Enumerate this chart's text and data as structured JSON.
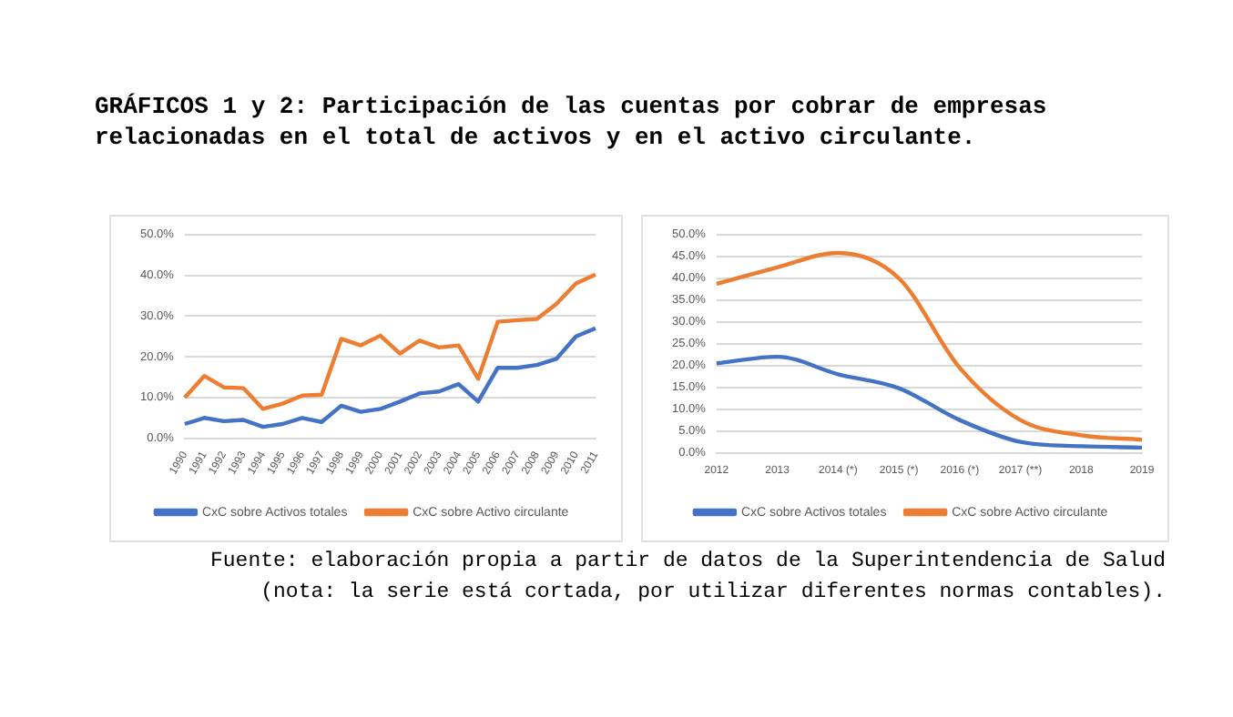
{
  "chart_data": [
    {
      "type": "line",
      "title": "GRÁFICOS 1 y 2: Participación de las cuentas por cobrar de empresas relacionadas en el total de activos y en el activo circulante.",
      "categories": [
        "1990",
        "1991",
        "1992",
        "1993",
        "1994",
        "1995",
        "1996",
        "1997",
        "1998",
        "1999",
        "2000",
        "2001",
        "2002",
        "2003",
        "2004",
        "2005",
        "2006",
        "2007",
        "2008",
        "2009",
        "2010",
        "2011"
      ],
      "series": [
        {
          "name": "CxC sobre Activos totales",
          "color": "#4472c4",
          "values": [
            3.5,
            5,
            4.2,
            4.5,
            2.8,
            3.5,
            5,
            4,
            8,
            6.5,
            7.2,
            9,
            11,
            11.5,
            13.3,
            9,
            17.3,
            17.3,
            18,
            19.5,
            25,
            27
          ]
        },
        {
          "name": "CxC sobre Activo circulante",
          "color": "#ed7d31",
          "values": [
            10,
            15.3,
            12.5,
            12.3,
            7.2,
            8.5,
            10.5,
            10.7,
            24.4,
            22.8,
            25.2,
            20.8,
            24,
            22.3,
            22.8,
            14.6,
            28.6,
            29,
            29.3,
            33,
            38,
            40.2
          ]
        }
      ],
      "ylim": [
        0,
        50
      ],
      "yticks": [
        {
          "value": 0,
          "label": "0.0%"
        },
        {
          "value": 10,
          "label": "10.0%"
        },
        {
          "value": 20,
          "label": "20.0%"
        },
        {
          "value": 30,
          "label": "30.0%"
        },
        {
          "value": 40,
          "label": "40.0%"
        },
        {
          "value": 50,
          "label": "50.0%"
        }
      ],
      "grid": "y",
      "legend": "bottom",
      "marker": "none",
      "line_style": "solid"
    },
    {
      "type": "line",
      "categories": [
        "2012",
        "2013",
        "2014 (*)",
        "2015 (*)",
        "2016 (*)",
        "2017 (**)",
        "2018",
        "2019"
      ],
      "series": [
        {
          "name": "CxC sobre Activos totales",
          "color": "#4472c4",
          "values": [
            20.5,
            22,
            18,
            14.8,
            7.5,
            2.5,
            1.5,
            1.2
          ]
        },
        {
          "name": "CxC sobre Activo circulante",
          "color": "#ed7d31",
          "values": [
            38.7,
            42.5,
            45.8,
            40,
            19.5,
            7.5,
            4,
            3
          ]
        }
      ],
      "ylim": [
        0,
        50
      ],
      "yticks": [
        {
          "value": 0,
          "label": "0.0%"
        },
        {
          "value": 5,
          "label": "5.0%"
        },
        {
          "value": 10,
          "label": "10.0%"
        },
        {
          "value": 15,
          "label": "15.0%"
        },
        {
          "value": 20,
          "label": "20.0%"
        },
        {
          "value": 25,
          "label": "25.0%"
        },
        {
          "value": 30,
          "label": "30.0%"
        },
        {
          "value": 35,
          "label": "35.0%"
        },
        {
          "value": 40,
          "label": "40.0%"
        },
        {
          "value": 45,
          "label": "45.0%"
        },
        {
          "value": 50,
          "label": "50.0%"
        }
      ],
      "grid": "y",
      "legend": "bottom",
      "marker": "none",
      "line_style": "solid",
      "annotations": [
        "Fuente: elaboración propia a partir de datos de la Superintendencia de Salud (nota: la serie está cortada, por utilizar diferentes normas contables)."
      ]
    }
  ]
}
